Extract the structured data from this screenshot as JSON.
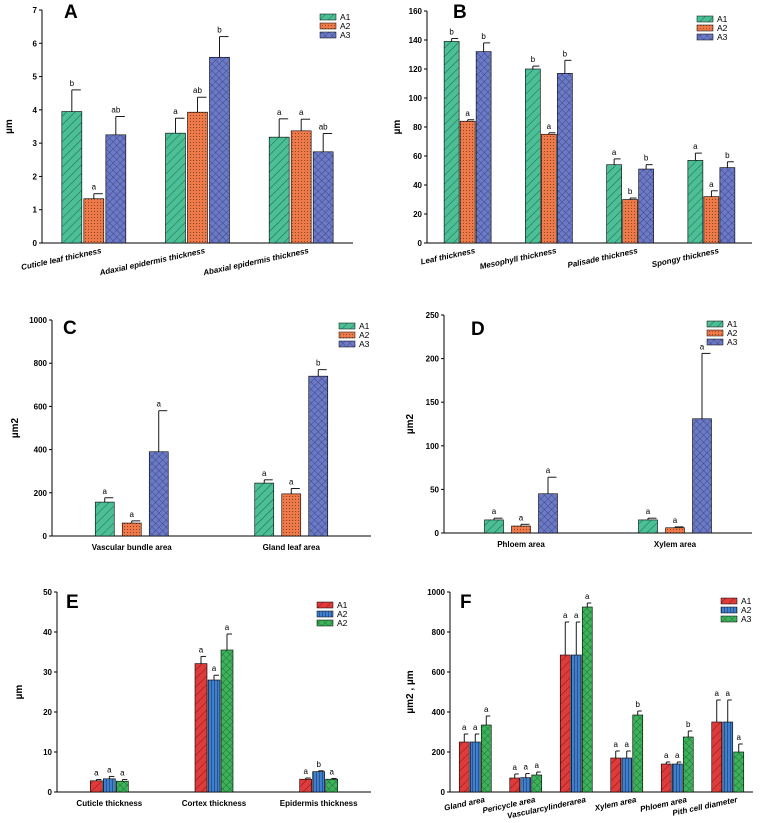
{
  "colors": {
    "teal": "#4bbf95",
    "orange": "#ef7a49",
    "blue_purple": "#6b79c9",
    "red": "#e03a3a",
    "blue": "#3f7fd0",
    "green": "#3cb35a"
  },
  "chart_data": [
    {
      "panel": "A",
      "type": "bar",
      "ylabel": "µm",
      "ylim": [
        0,
        7
      ],
      "ystep": 1,
      "categories": [
        "Cuticle leaf thickness",
        "Adaxial epidermis thickness",
        "Abaxial epidermis thickness"
      ],
      "series": [
        {
          "name": "A1",
          "values": [
            3.95,
            3.3,
            3.18
          ],
          "errors": [
            0.65,
            0.45,
            0.55
          ],
          "labels": [
            "b",
            "a",
            "a"
          ],
          "fill": "teal",
          "pattern": "diag"
        },
        {
          "name": "A2",
          "values": [
            1.33,
            3.93,
            3.37
          ],
          "errors": [
            0.15,
            0.45,
            0.35
          ],
          "labels": [
            "a",
            "ab",
            "a"
          ],
          "fill": "orange",
          "pattern": "dots"
        },
        {
          "name": "A3",
          "values": [
            3.25,
            5.58,
            2.74
          ],
          "errors": [
            0.55,
            0.62,
            0.55
          ],
          "labels": [
            "ab",
            "b",
            "ab"
          ],
          "fill": "blue_purple",
          "pattern": "cross"
        }
      ]
    },
    {
      "panel": "B",
      "type": "bar",
      "ylabel": "µm",
      "ylim": [
        0,
        160
      ],
      "ystep": 20,
      "categories": [
        "Leaf thickness",
        "Mesophyll thickness",
        "Palisade thickness",
        "Spongy thickness"
      ],
      "series": [
        {
          "name": "A1",
          "values": [
            139,
            120,
            54,
            57
          ],
          "errors": [
            2,
            2,
            4,
            5
          ],
          "labels": [
            "b",
            "b",
            "a",
            "a"
          ],
          "fill": "teal",
          "pattern": "diag"
        },
        {
          "name": "A2",
          "values": [
            84,
            75,
            30,
            32
          ],
          "errors": [
            1,
            1,
            1,
            4
          ],
          "labels": [
            "a",
            "a",
            "b",
            "a"
          ],
          "fill": "orange",
          "pattern": "dots"
        },
        {
          "name": "A3",
          "values": [
            132,
            117,
            51,
            52
          ],
          "errors": [
            6,
            9,
            3,
            4
          ],
          "labels": [
            "b",
            "b",
            "b",
            "b"
          ],
          "fill": "blue_purple",
          "pattern": "cross"
        }
      ]
    },
    {
      "panel": "C",
      "type": "bar",
      "ylabel": "µm2",
      "ylim": [
        0,
        1000
      ],
      "ystep": 200,
      "categories": [
        "Vascular bundle area",
        "Gland leaf area"
      ],
      "series": [
        {
          "name": "A1",
          "values": [
            157,
            245
          ],
          "errors": [
            20,
            15
          ],
          "labels": [
            "a",
            "a"
          ],
          "fill": "teal",
          "pattern": "diag"
        },
        {
          "name": "A2",
          "values": [
            60,
            195
          ],
          "errors": [
            10,
            25
          ],
          "labels": [
            "a",
            "a"
          ],
          "fill": "orange",
          "pattern": "dots"
        },
        {
          "name": "A3",
          "values": [
            390,
            740
          ],
          "errors": [
            190,
            30
          ],
          "labels": [
            "a",
            "b"
          ],
          "fill": "blue_purple",
          "pattern": "cross"
        }
      ]
    },
    {
      "panel": "D",
      "type": "bar",
      "ylabel": "µm2",
      "ylim": [
        0,
        250
      ],
      "ystep": 50,
      "categories": [
        "Phloem area",
        "Xylem area"
      ],
      "series": [
        {
          "name": "A1",
          "values": [
            15,
            15
          ],
          "errors": [
            2,
            2
          ],
          "labels": [
            "a",
            "a"
          ],
          "fill": "teal",
          "pattern": "diag"
        },
        {
          "name": "A2",
          "values": [
            8,
            6
          ],
          "errors": [
            2,
            1
          ],
          "labels": [
            "a",
            "a"
          ],
          "fill": "orange",
          "pattern": "dots"
        },
        {
          "name": "A3",
          "values": [
            45,
            131
          ],
          "errors": [
            19,
            75
          ],
          "labels": [
            "a",
            "a"
          ],
          "fill": "blue_purple",
          "pattern": "cross"
        }
      ]
    },
    {
      "panel": "E",
      "type": "bar",
      "ylabel": "µm",
      "ylim": [
        0,
        50
      ],
      "ystep": 10,
      "categories": [
        "Cuticle thickness",
        "Cortex thickness",
        "Epidermis thickness"
      ],
      "series": [
        {
          "name": "A1",
          "values": [
            2.8,
            32.1,
            3.2
          ],
          "errors": [
            0.3,
            1.8,
            0.3
          ],
          "labels": [
            "a",
            "a",
            "a"
          ],
          "fill": "red",
          "pattern": "diag"
        },
        {
          "name": "A2",
          "values": [
            3.3,
            28.0,
            5.1
          ],
          "errors": [
            0.6,
            1.2,
            0.2
          ],
          "labels": [
            "a",
            "a",
            "b"
          ],
          "fill": "blue",
          "pattern": "vert"
        },
        {
          "name": "A2",
          "values": [
            2.7,
            35.5,
            3.2
          ],
          "errors": [
            0.4,
            4.0,
            0.2
          ],
          "labels": [
            "a",
            "a",
            "a"
          ],
          "fill": "green",
          "pattern": "cross"
        }
      ]
    },
    {
      "panel": "F",
      "type": "bar",
      "ylabel": "µm2 , µm",
      "ylim": [
        0,
        1000
      ],
      "ystep": 200,
      "categories": [
        "Gland area",
        "Pericycle area",
        "Vascularcylinderarea",
        "Xylem area",
        "Phloem area",
        "Pith cell diameter"
      ],
      "series": [
        {
          "name": "A1",
          "values": [
            250,
            70,
            685,
            170,
            140,
            350
          ],
          "errors": [
            40,
            20,
            165,
            35,
            10,
            110
          ],
          "labels": [
            "a",
            "a",
            "a",
            "a",
            "a",
            "a"
          ],
          "fill": "red",
          "pattern": "diag"
        },
        {
          "name": "A2",
          "values": [
            250,
            72,
            685,
            170,
            140,
            350
          ],
          "errors": [
            40,
            20,
            165,
            35,
            10,
            110
          ],
          "labels": [
            "a",
            "a",
            "a",
            "a",
            "a",
            "a"
          ],
          "fill": "blue",
          "pattern": "vert"
        },
        {
          "name": "A3",
          "values": [
            335,
            85,
            925,
            385,
            275,
            200
          ],
          "errors": [
            45,
            15,
            20,
            20,
            30,
            40
          ],
          "labels": [
            "a",
            "a",
            "a",
            "b",
            "b",
            "a"
          ],
          "fill": "green",
          "pattern": "cross"
        }
      ]
    }
  ]
}
